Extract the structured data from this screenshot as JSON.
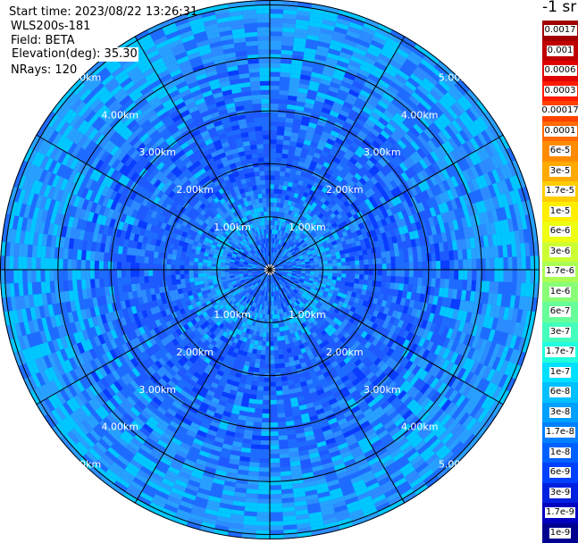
{
  "header": {
    "start_time": "Start time: 2023/08/22 13:26:31",
    "instrument": "WLS200s-181",
    "field": "Field: BETA",
    "elevation": "Elevation(deg): 35.30",
    "nrays": "NRays: 120"
  },
  "colorbar": {
    "unit_label": "-1 sr",
    "entries": [
      {
        "label": "0.0017",
        "color": "#a00000"
      },
      {
        "label": "0.001",
        "color": "#c00000"
      },
      {
        "label": "0.0006",
        "color": "#e00000"
      },
      {
        "label": "0.0003",
        "color": "#ff1a00"
      },
      {
        "label": "0.00017",
        "color": "#ff4000"
      },
      {
        "label": "0.0001",
        "color": "#ff6a00"
      },
      {
        "label": "6e-5",
        "color": "#ff8c00"
      },
      {
        "label": "3e-5",
        "color": "#ffaa00"
      },
      {
        "label": "1.7e-5",
        "color": "#ffcc00"
      },
      {
        "label": "1e-5",
        "color": "#ffee00"
      },
      {
        "label": "6e-6",
        "color": "#eeff10"
      },
      {
        "label": "3e-6",
        "color": "#ccff33"
      },
      {
        "label": "1.7e-6",
        "color": "#aaff55"
      },
      {
        "label": "1e-6",
        "color": "#88ff77"
      },
      {
        "label": "6e-7",
        "color": "#66ff99"
      },
      {
        "label": "3e-7",
        "color": "#44ffbb"
      },
      {
        "label": "1.7e-7",
        "color": "#22ffdd"
      },
      {
        "label": "1e-7",
        "color": "#00e0ff"
      },
      {
        "label": "6e-8",
        "color": "#00c0ff"
      },
      {
        "label": "3e-8",
        "color": "#00a0ff"
      },
      {
        "label": "1.7e-8",
        "color": "#0080ff"
      },
      {
        "label": "1e-8",
        "color": "#0060ff"
      },
      {
        "label": "6e-9",
        "color": "#0040ff"
      },
      {
        "label": "3e-9",
        "color": "#0020e0"
      },
      {
        "label": "1.7e-9",
        "color": "#0000c0"
      },
      {
        "label": "1e-9",
        "color": "#000090"
      }
    ]
  },
  "chart_data": {
    "type": "heatmap",
    "projection": "polar-ppi",
    "nrays": 120,
    "max_range_km": 5.1,
    "range_rings_km": [
      1,
      2,
      3,
      4,
      5
    ],
    "ring_labels": [
      "1.00km",
      "2.00km",
      "3.00km",
      "4.00km",
      "5.00km"
    ],
    "spokes_deg": [
      0,
      30,
      60,
      90,
      120,
      150,
      180,
      210,
      240,
      270,
      300,
      330
    ],
    "field": "BETA",
    "scale": "log",
    "value_range": [
      1e-09,
      0.0017
    ],
    "radial_profile": [
      {
        "range_km": 0.2,
        "beta": 2e-08
      },
      {
        "range_km": 0.6,
        "beta": 2e-08
      },
      {
        "range_km": 1.0,
        "beta": 6e-08
      },
      {
        "range_km": 1.5,
        "beta": 2e-08
      },
      {
        "range_km": 2.0,
        "beta": 1.5e-08
      },
      {
        "range_km": 3.0,
        "beta": 2e-08
      },
      {
        "range_km": 4.0,
        "beta": 4e-08
      },
      {
        "range_km": 5.0,
        "beta": 6e-08
      }
    ]
  }
}
